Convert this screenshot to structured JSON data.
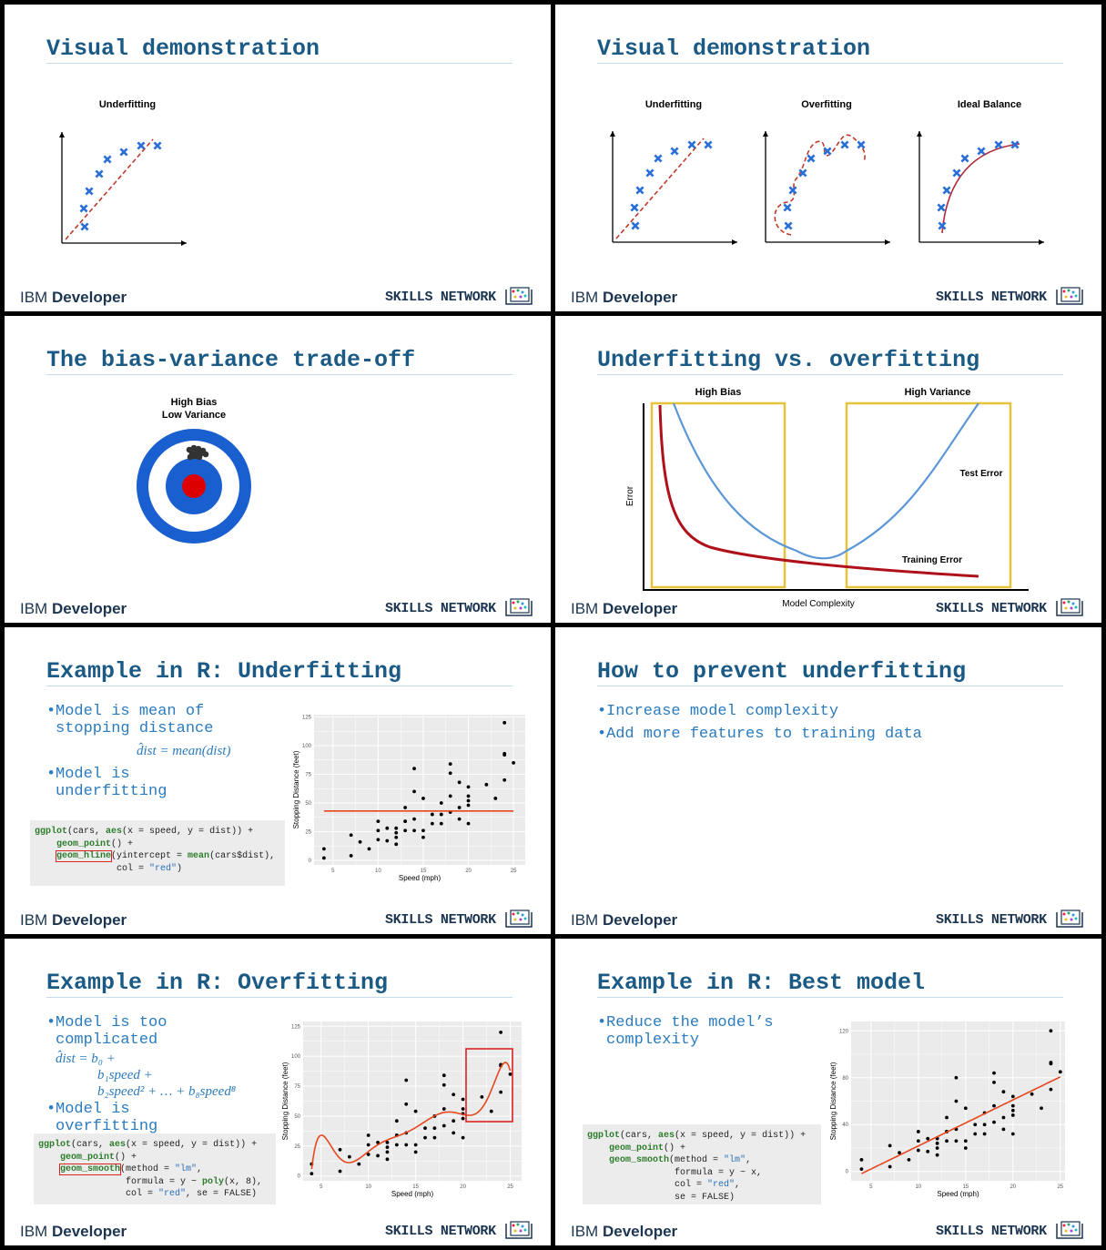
{
  "footer": {
    "brand": "IBM",
    "product": "Developer",
    "network": "SKILLS NETWORK"
  },
  "cars": {
    "speed": [
      4,
      4,
      7,
      7,
      8,
      9,
      10,
      10,
      10,
      11,
      11,
      12,
      12,
      12,
      12,
      13,
      13,
      13,
      13,
      14,
      14,
      14,
      14,
      15,
      15,
      15,
      16,
      16,
      17,
      17,
      17,
      18,
      18,
      18,
      18,
      19,
      19,
      19,
      20,
      20,
      20,
      20,
      20,
      22,
      23,
      24,
      24,
      24,
      24,
      25
    ],
    "dist": [
      2,
      10,
      4,
      22,
      16,
      10,
      18,
      26,
      34,
      17,
      28,
      14,
      20,
      24,
      28,
      26,
      34,
      34,
      46,
      26,
      36,
      60,
      80,
      20,
      26,
      54,
      32,
      40,
      32,
      40,
      50,
      42,
      56,
      76,
      84,
      36,
      46,
      68,
      32,
      48,
      52,
      56,
      64,
      66,
      54,
      70,
      92,
      93,
      120,
      85
    ]
  },
  "slides": [
    {
      "title": "Visual demonstration",
      "panels": [
        "Underfitting"
      ]
    },
    {
      "title": "Visual demonstration",
      "panels": [
        "Underfitting",
        "Overfitting",
        "Ideal Balance"
      ]
    },
    {
      "title": "The bias-variance trade-off",
      "labels": [
        "High Bias",
        "Low Variance"
      ]
    },
    {
      "title": "Underfitting vs. overfitting",
      "labels": {
        "left": "High Bias",
        "right": "High Variance",
        "test": "Test Error",
        "train": "Training Error",
        "y": "Error",
        "x": "Model Complexity"
      }
    },
    {
      "title": "Example in R: Underfitting",
      "bullets": [
        "Model is mean of stopping distance",
        "Model is underfitting"
      ],
      "formula": [
        "d̂ist = mean(dist)"
      ],
      "code": [
        "ggplot(cars, aes(x = speed, y = dist)) +",
        "    geom_point() +",
        "    geom_hline(yintercept = mean(cars$dist),",
        "               col = \"red\")"
      ],
      "plot": {
        "y_label": "Stopping Distance (feet)",
        "x_label": "Speed (mph)",
        "xticks": [
          5,
          10,
          15,
          20,
          25
        ],
        "yticks": [
          0,
          25,
          50,
          75,
          100,
          125
        ],
        "xlim": [
          2.9,
          26.3
        ],
        "ylim": [
          -4,
          127
        ]
      }
    },
    {
      "title": "How to prevent underfitting",
      "bullets": [
        "Increase model complexity",
        "Add more features to training data"
      ]
    },
    {
      "title": "Example in R: Overfitting",
      "bullets": [
        "Model is too complicated",
        "Model is overfitting"
      ],
      "formula": [
        "d̂ist = b₀ +",
        "b₁speed +",
        "b₂speed² + … + b₈speed⁸"
      ],
      "code": [
        "ggplot(cars, aes(x = speed, y = dist)) +",
        "    geom_point() +",
        "    geom_smooth(method = \"lm\",",
        "                formula = y ~ poly(x, 8),",
        "                col = \"red\", se = FALSE)"
      ],
      "plot": {
        "y_label": "Stopping Distance (feet)",
        "x_label": "Speed (mph)",
        "xticks": [
          5,
          10,
          15,
          20,
          25
        ],
        "yticks": [
          0,
          25,
          50,
          75,
          100,
          125
        ],
        "xlim": [
          3.1,
          26.2
        ],
        "ylim": [
          -4,
          129
        ]
      }
    },
    {
      "title": "Example in R: Best model",
      "bullets": [
        "Reduce the model’s complexity"
      ],
      "code": [
        "ggplot(cars, aes(x = speed, y = dist)) +",
        "    geom_point() +",
        "    geom_smooth(method = \"lm\",",
        "                formula = y ~ x,",
        "                col = \"red\",",
        "                se = FALSE)"
      ],
      "plot": {
        "y_label": "Stopping Distance (feet)",
        "x_label": "Speed (mph)",
        "xticks": [
          5,
          10,
          15,
          20,
          25
        ],
        "yticks": [
          0,
          40,
          80,
          120
        ],
        "xlim": [
          2.9,
          25.5
        ],
        "ylim": [
          -8,
          128
        ]
      }
    }
  ]
}
